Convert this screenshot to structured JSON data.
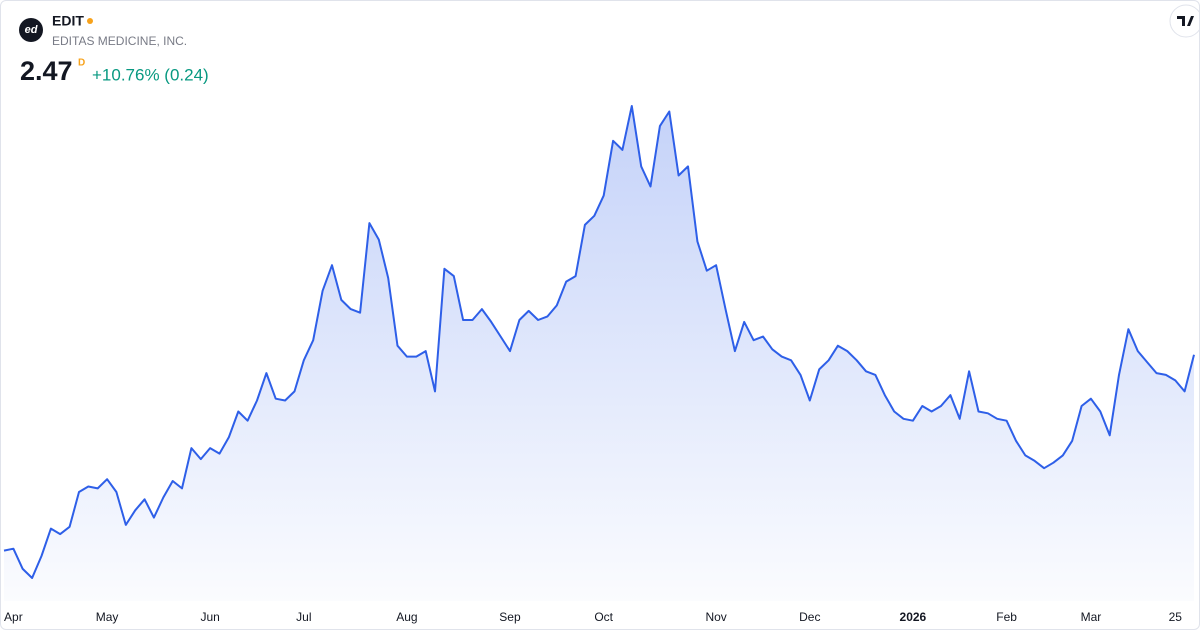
{
  "header": {
    "logo_text": "ed",
    "symbol": "EDIT",
    "name": "EDITAS MEDICINE, INC.",
    "price": 2.47,
    "price_flag": "D",
    "change": "+10.76% (0.24)"
  },
  "chart_data": {
    "type": "area",
    "color": "#2e5fe8",
    "categories": [
      null,
      "Apr",
      null,
      null,
      null,
      null,
      null,
      null,
      null,
      null,
      null,
      "May",
      null,
      null,
      null,
      null,
      null,
      null,
      null,
      null,
      null,
      null,
      "Jun",
      null,
      null,
      null,
      null,
      null,
      null,
      null,
      null,
      null,
      "Jul",
      null,
      null,
      null,
      null,
      null,
      null,
      null,
      null,
      null,
      null,
      "Aug",
      null,
      null,
      null,
      null,
      null,
      null,
      null,
      null,
      null,
      null,
      "Sep",
      null,
      null,
      null,
      null,
      null,
      null,
      null,
      null,
      null,
      "Oct",
      null,
      null,
      null,
      null,
      null,
      null,
      null,
      null,
      null,
      null,
      null,
      "Nov",
      null,
      null,
      null,
      null,
      null,
      null,
      null,
      null,
      null,
      "Dec",
      null,
      null,
      null,
      null,
      null,
      null,
      null,
      null,
      null,
      null,
      "2026",
      null,
      null,
      null,
      null,
      null,
      null,
      null,
      null,
      null,
      "Feb",
      null,
      null,
      null,
      null,
      null,
      null,
      null,
      null,
      "Mar",
      null,
      null,
      null,
      null,
      null,
      null,
      null,
      null,
      "25",
      null,
      null
    ],
    "values": [
      1.4,
      1.41,
      1.3,
      1.25,
      1.37,
      1.52,
      1.49,
      1.53,
      1.72,
      1.75,
      1.74,
      1.79,
      1.72,
      1.54,
      1.62,
      1.68,
      1.58,
      1.69,
      1.78,
      1.74,
      1.96,
      1.9,
      1.96,
      1.93,
      2.02,
      2.16,
      2.11,
      2.22,
      2.37,
      2.23,
      2.22,
      2.27,
      2.44,
      2.55,
      2.82,
      2.96,
      2.77,
      2.72,
      2.7,
      3.19,
      3.1,
      2.89,
      2.52,
      2.46,
      2.46,
      2.49,
      2.27,
      2.94,
      2.9,
      2.66,
      2.66,
      2.72,
      2.65,
      2.57,
      2.49,
      2.66,
      2.71,
      2.66,
      2.68,
      2.74,
      2.87,
      2.9,
      3.18,
      3.23,
      3.34,
      3.64,
      3.59,
      3.83,
      3.5,
      3.39,
      3.72,
      3.8,
      3.45,
      3.5,
      3.09,
      2.93,
      2.96,
      2.72,
      2.49,
      2.65,
      2.55,
      2.57,
      2.5,
      2.46,
      2.44,
      2.36,
      2.22,
      2.39,
      2.44,
      2.52,
      2.49,
      2.44,
      2.38,
      2.36,
      2.25,
      2.16,
      2.12,
      2.11,
      2.19,
      2.16,
      2.19,
      2.25,
      2.12,
      2.38,
      2.16,
      2.15,
      2.12,
      2.11,
      2.0,
      1.92,
      1.89,
      1.85,
      1.88,
      1.92,
      2.0,
      2.19,
      2.23,
      2.16,
      2.03,
      2.36,
      2.61,
      2.49,
      2.43,
      2.37,
      2.36,
      2.33,
      2.27,
      2.47
    ]
  }
}
